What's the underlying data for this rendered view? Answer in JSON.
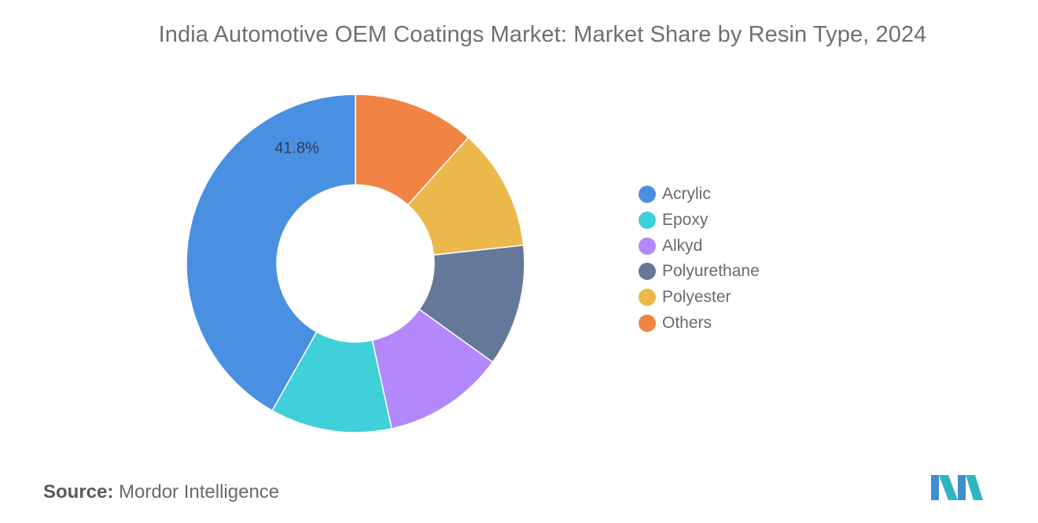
{
  "title": "India Automotive OEM Coatings Market: Market Share by Resin Type, 2024",
  "source": {
    "label": "Source:",
    "text": "Mordor Intelligence"
  },
  "chart_data": {
    "type": "pie",
    "donut": true,
    "title": "India Automotive OEM Coatings Market: Market Share by Resin Type, 2024",
    "categories": [
      "Acrylic",
      "Epoxy",
      "Alkyd",
      "Polyurethane",
      "Polyester",
      "Others"
    ],
    "values": [
      41.8,
      11.64,
      11.64,
      11.64,
      11.64,
      11.64
    ],
    "data_labels": [
      "41.8%",
      "",
      "",
      "",
      "",
      ""
    ],
    "colors": [
      "#4a90e2",
      "#3fd0d9",
      "#b388fb",
      "#66789a",
      "#ecb84c",
      "#f18344"
    ],
    "legend_position": "right"
  }
}
